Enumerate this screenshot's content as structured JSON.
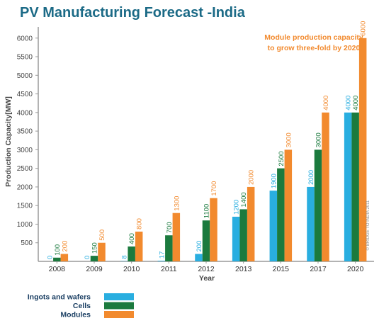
{
  "chart_data": {
    "type": "bar",
    "title": "PV Manufacturing Forecast -India",
    "xlabel": "Year",
    "ylabel": "Production Capacity[MW]",
    "ylim": [
      0,
      6300
    ],
    "yticks": [
      500,
      1000,
      1500,
      2000,
      2500,
      3000,
      3500,
      4000,
      4500,
      5000,
      5500,
      6000
    ],
    "categories": [
      "2008",
      "2009",
      "2010",
      "2011",
      "2012",
      "2013",
      "2015",
      "2017",
      "2020"
    ],
    "series": [
      {
        "name": "Ingots and wafers",
        "color": "#29aee0",
        "values": [
          0,
          0,
          8,
          17,
          200,
          1200,
          1900,
          2000,
          4000
        ],
        "labels": [
          "0",
          "0",
          "8",
          "17",
          "200",
          "1200",
          "1900",
          "2000",
          "4000"
        ]
      },
      {
        "name": "Cells",
        "color": "#1b7a3e",
        "values": [
          100,
          150,
          400,
          700,
          1100,
          1400,
          2500,
          3000,
          4000
        ],
        "labels": [
          "100",
          "150",
          "400",
          "700",
          "1100",
          "1400",
          "2500",
          "3000",
          "4000"
        ]
      },
      {
        "name": "Modules",
        "color": "#f28a2e",
        "values": [
          200,
          500,
          800,
          1300,
          1700,
          2000,
          3000,
          4000,
          6000
        ],
        "labels": [
          "200",
          "500",
          "800",
          "1300",
          "1700",
          "2000",
          "3000",
          "4000",
          "6000"
        ]
      }
    ],
    "annotation": [
      "Module  production capacity",
      "to grow three-fold by 2020"
    ],
    "credit": "© BRIDGE TO INDIA 2011",
    "legend_position": "bottom-left",
    "grid": false
  }
}
